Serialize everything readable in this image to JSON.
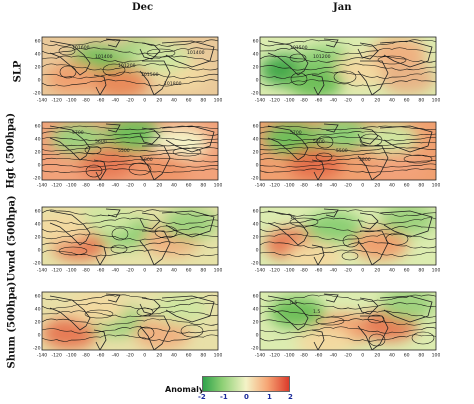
{
  "columns": [
    "Dec",
    "Jan"
  ],
  "rows": [
    "SLP",
    "Hgt (500hpa)",
    "Uwnd (500hpa)",
    "Shum (500hpa)"
  ],
  "axes": {
    "x_ticks": [
      "-140",
      "-120",
      "-100",
      "-80",
      "-60",
      "-40",
      "-20",
      "0",
      "20",
      "40",
      "60",
      "80",
      "100"
    ],
    "y_ticks": [
      "60",
      "40",
      "20",
      "0",
      "-20"
    ]
  },
  "contour_labels": {
    "slp_dec": [
      "101600",
      "101400",
      "101200",
      "101500",
      "101800",
      "101400"
    ],
    "slp_jan": [
      "101500",
      "101200"
    ],
    "hgt_dec": [
      "5700",
      "5600",
      "5500",
      "5800"
    ],
    "hgt_jan": [
      "5700",
      "5600",
      "5500",
      "5800"
    ],
    "uwnd_dec": [],
    "uwnd_jan": [
      "15"
    ],
    "shum_dec": [],
    "shum_jan": [
      "0.5",
      "1.5"
    ]
  },
  "legend": {
    "title": "Anomaly",
    "ticks": [
      "-2",
      "-1",
      "0",
      "1",
      "2"
    ],
    "colors": [
      "#2ea24a",
      "#8ccf74",
      "#f4f3c7",
      "#f6a574",
      "#dc3b2b"
    ]
  }
}
